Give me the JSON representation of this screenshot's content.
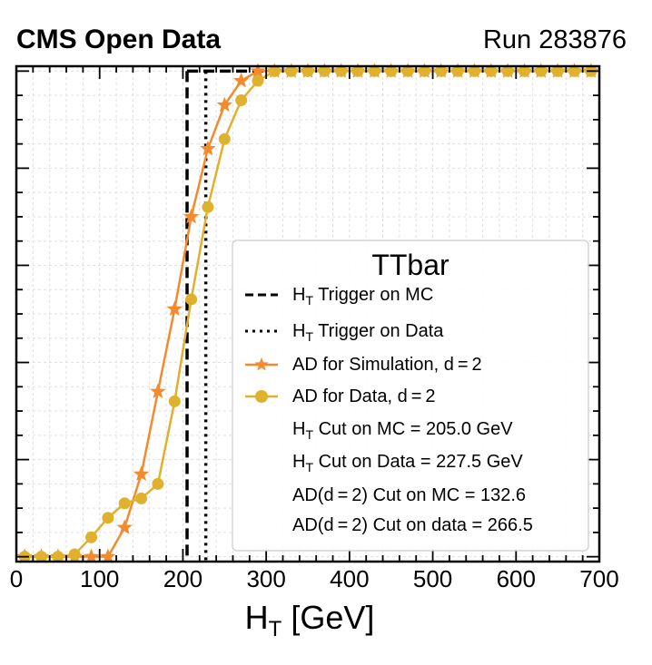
{
  "header": {
    "experiment": "CMS Open Data",
    "run": "Run 283876"
  },
  "chart_data": {
    "type": "line",
    "title": "TTbar",
    "xlabel_main": "H",
    "xlabel_sub": "T",
    "xlabel_unit": " [GeV]",
    "ylabel": "",
    "xlim": [
      0,
      700
    ],
    "ylim": [
      -0.01,
      1.01
    ],
    "x_ticks": [
      "0",
      "100",
      "200",
      "300",
      "400",
      "500",
      "600",
      "700"
    ],
    "x_tick_values": [
      0,
      100,
      200,
      300,
      400,
      500,
      600,
      700
    ],
    "y_tick_values": [
      0,
      0.2,
      0.4,
      0.6,
      0.8,
      1.0
    ],
    "grid": true,
    "legend_placement": "lower-right",
    "vlines": [
      {
        "name": "H_T Trigger on MC",
        "x": 205.0,
        "style": "dashed",
        "color": "#000000",
        "label_main": "H",
        "label_sub": "T",
        "label_rest": " Trigger on MC"
      },
      {
        "name": "H_T Trigger on Data",
        "x": 227.5,
        "style": "dotted",
        "color": "#000000",
        "label_main": "H",
        "label_sub": "T",
        "label_rest": " Trigger on Data"
      }
    ],
    "series": [
      {
        "name": "AD for Simulation, d = 2",
        "label": "AD for Simulation, d = 2",
        "color": "#f58a2c",
        "marker": "star",
        "x": [
          10,
          30,
          50,
          70,
          90,
          110,
          130,
          150,
          170,
          190,
          210,
          230,
          250,
          270,
          290,
          310,
          330,
          350,
          370,
          390,
          410,
          430,
          450,
          470,
          490,
          510,
          530,
          550,
          570,
          590,
          610,
          630,
          650,
          670,
          690
        ],
        "y": [
          0,
          0,
          0,
          0,
          0,
          0,
          0.06,
          0.17,
          0.34,
          0.51,
          0.7,
          0.84,
          0.93,
          0.98,
          1.0,
          1.0,
          1.0,
          1.0,
          1.0,
          1.0,
          1.0,
          1.0,
          1.0,
          1.0,
          1.0,
          1.0,
          1.0,
          1.0,
          1.0,
          1.0,
          1.0,
          1.0,
          1.0,
          1.0,
          1.0
        ]
      },
      {
        "name": "AD for Data, d = 2",
        "label": "AD for Data, d = 2",
        "color": "#e0b12d",
        "marker": "circle",
        "x": [
          10,
          30,
          50,
          70,
          90,
          110,
          130,
          150,
          170,
          190,
          210,
          230,
          250,
          270,
          290,
          310,
          330,
          350,
          370,
          390,
          410,
          430,
          450,
          470,
          490,
          510,
          530,
          550,
          570,
          590,
          610,
          630,
          650,
          670,
          690
        ],
        "y": [
          0,
          0,
          0,
          0.005,
          0.04,
          0.08,
          0.11,
          0.12,
          0.15,
          0.32,
          0.53,
          0.72,
          0.86,
          0.94,
          0.98,
          1.0,
          1.0,
          1.0,
          1.0,
          1.0,
          1.0,
          1.0,
          1.0,
          1.0,
          1.0,
          1.0,
          1.0,
          1.0,
          1.0,
          1.0,
          1.0,
          1.0,
          1.0,
          1.0,
          1.0
        ]
      }
    ],
    "annotations": [
      {
        "main": "H",
        "sub": "T",
        "rest": " Cut on MC = 205.0 GeV"
      },
      {
        "main": "H",
        "sub": "T",
        "rest": " Cut on Data = 227.5 GeV"
      },
      {
        "main": "AD(d = 2) Cut on MC = 132.6",
        "sub": "",
        "rest": ""
      },
      {
        "main": "AD(d = 2) Cut on data = 266.5",
        "sub": "",
        "rest": ""
      }
    ],
    "colors": {
      "frame": "#000000",
      "grid": "#e0e0e0",
      "legend_border": "#cccccc"
    }
  }
}
